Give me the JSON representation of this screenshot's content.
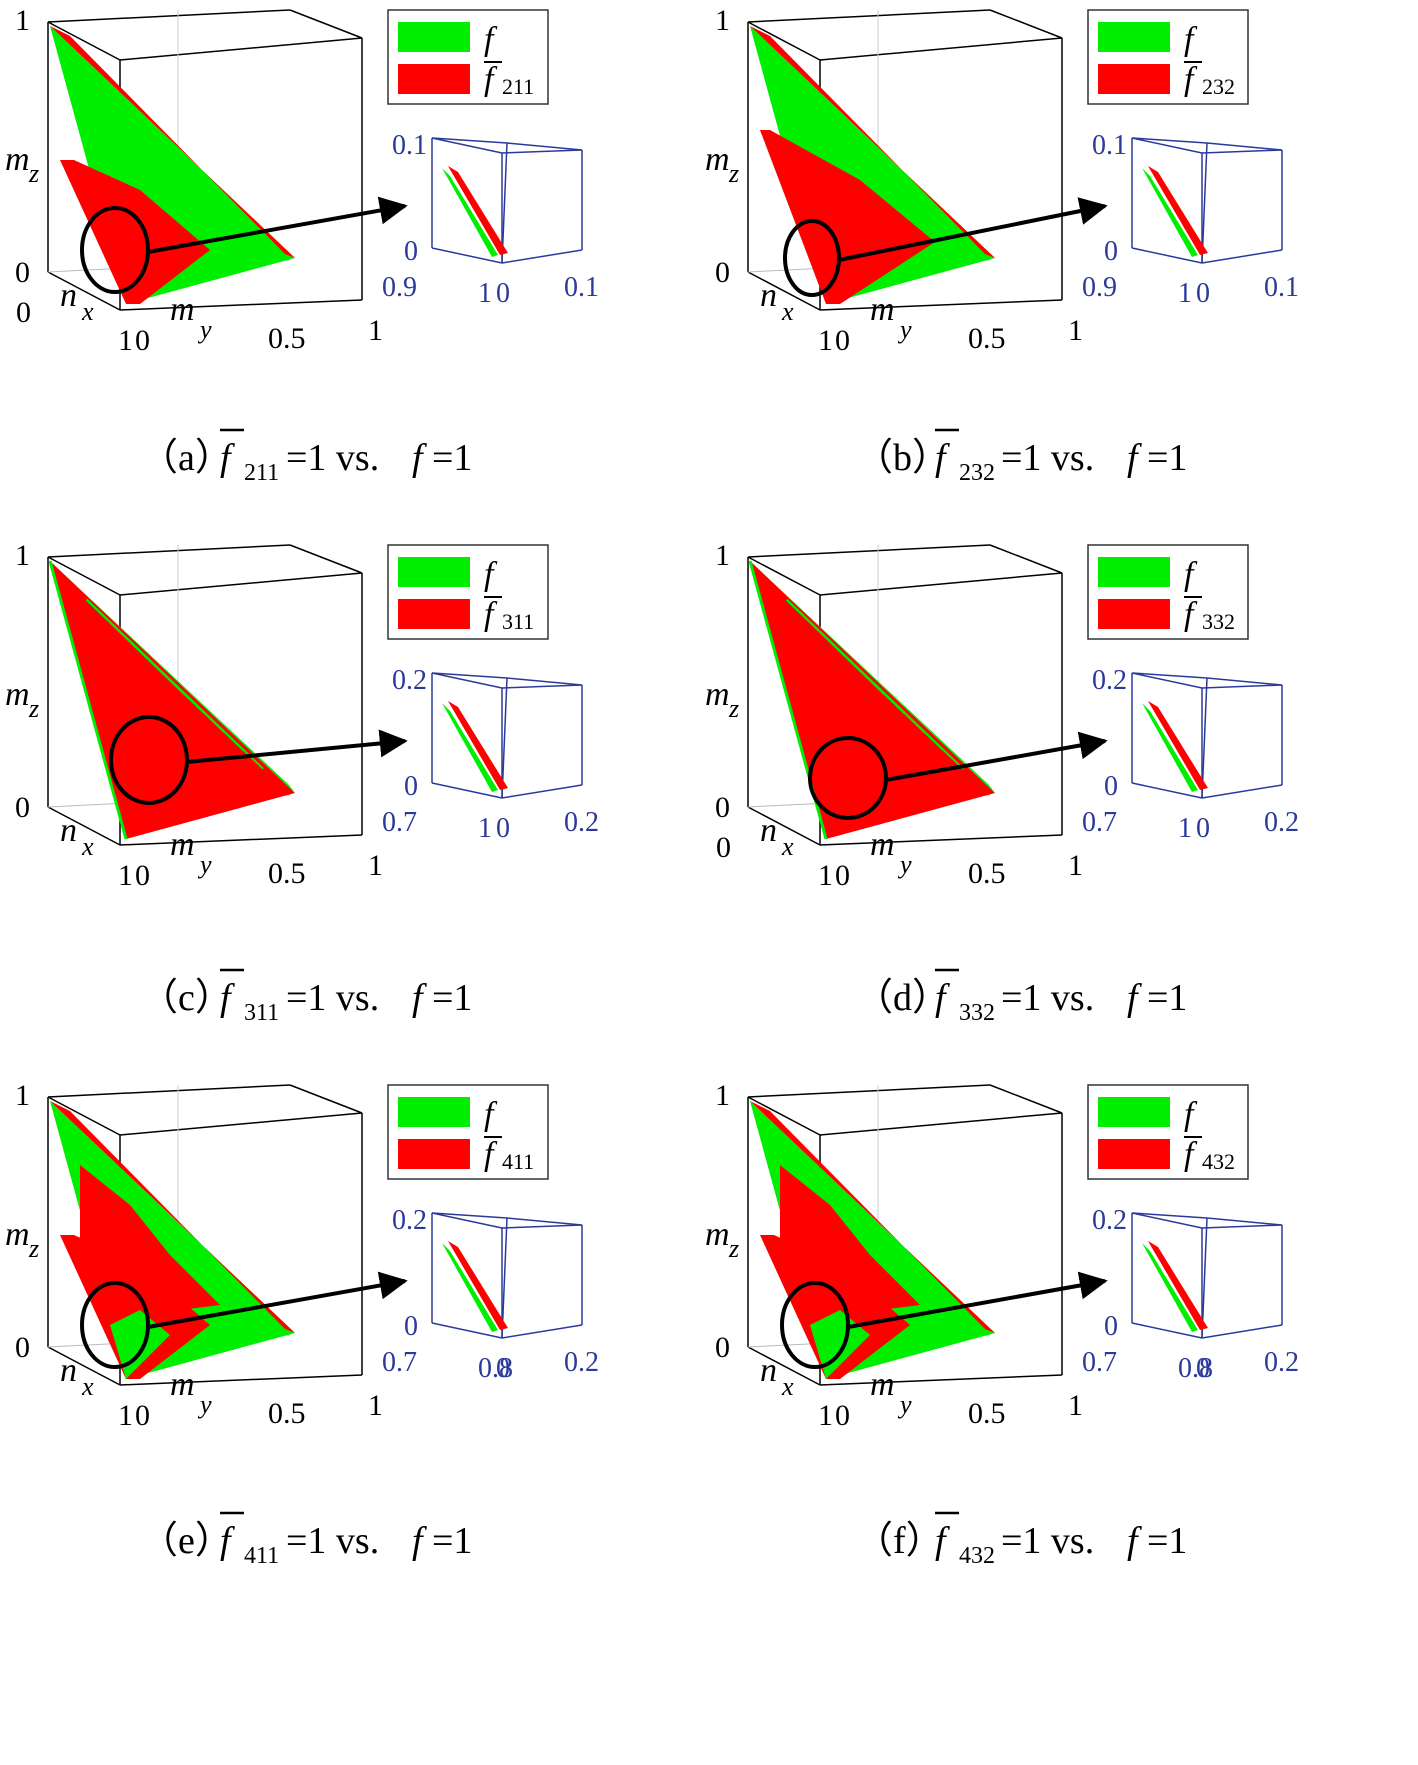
{
  "colors": {
    "f": "#00ee00",
    "fbar": "#ff0000",
    "axes": "#000000",
    "inset_axes": "#2b3a9a",
    "arrow": "#000000"
  },
  "shared": {
    "legend_f": "f",
    "legend_fbar": "f",
    "caption_eq": "=1 vs.",
    "caption_f": "f",
    "caption_end": "=1",
    "axis_mz": "m",
    "axis_mz_sub": "z",
    "axis_nx": "n",
    "axis_nx_sub": "x",
    "axis_my": "m",
    "axis_my_sub": "y"
  },
  "panels": [
    {
      "id": "a",
      "caption_label": "（a）",
      "subscript": "211",
      "ticks": {
        "z_top": "1",
        "z_bottom": "0",
        "x_origin": "0",
        "x_end": "1",
        "y_mid": "0.5",
        "y_end": "1"
      },
      "inset": {
        "z_top": "0.1",
        "z_bottom": "0",
        "x_left": "0.9",
        "x_right": "1",
        "y_mid": "0",
        "y_end": "0.1"
      },
      "dominant": "mixed"
    },
    {
      "id": "b",
      "caption_label": "（b）",
      "subscript": "232",
      "ticks": {
        "z_top": "1",
        "z_bottom": "0",
        "x_origin": "",
        "x_end": "1",
        "y_mid": "0.5",
        "y_end": "1"
      },
      "inset": {
        "z_top": "0.1",
        "z_bottom": "0",
        "x_left": "0.9",
        "x_right": "1",
        "y_mid": "0",
        "y_end": "0.1"
      },
      "dominant": "mixed"
    },
    {
      "id": "c",
      "caption_label": "（c）",
      "subscript": "311",
      "ticks": {
        "z_top": "1",
        "z_bottom": "0",
        "x_origin": "",
        "x_end": "1",
        "y_mid": "0.5",
        "y_end": "1",
        "y_start": "0"
      },
      "inset": {
        "z_top": "0.2",
        "z_bottom": "0",
        "x_left": "0.7",
        "x_right": "1",
        "y_mid": "0",
        "y_end": "0.2"
      },
      "dominant": "red"
    },
    {
      "id": "d",
      "caption_label": "（d）",
      "subscript": "332",
      "ticks": {
        "z_top": "1",
        "z_bottom": "0",
        "x_origin": "0",
        "x_end": "1",
        "y_mid": "0.5",
        "y_end": "1"
      },
      "inset": {
        "z_top": "0.2",
        "z_bottom": "0",
        "x_left": "0.7",
        "x_right": "1",
        "y_mid": "0",
        "y_end": "0.2"
      },
      "dominant": "red"
    },
    {
      "id": "e",
      "caption_label": "（e）",
      "subscript": "411",
      "ticks": {
        "z_top": "1",
        "z_bottom": "0",
        "x_origin": "",
        "x_end": "1",
        "y_mid": "0.5",
        "y_end": "1"
      },
      "inset": {
        "z_top": "0.2",
        "z_bottom": "0",
        "x_left": "0.7",
        "x_right": "0.8",
        "y_mid": "0",
        "y_end": "0.2"
      },
      "dominant": "mixed"
    },
    {
      "id": "f",
      "caption_label": "（f）",
      "subscript": "432",
      "ticks": {
        "z_top": "1",
        "z_bottom": "0",
        "x_origin": "",
        "x_end": "1",
        "y_mid": "0.5",
        "y_end": "1"
      },
      "inset": {
        "z_top": "0.2",
        "z_bottom": "0",
        "x_left": "0.7",
        "x_right": "0.8",
        "y_mid": "0",
        "y_end": "0.2"
      },
      "dominant": "mixed"
    }
  ]
}
